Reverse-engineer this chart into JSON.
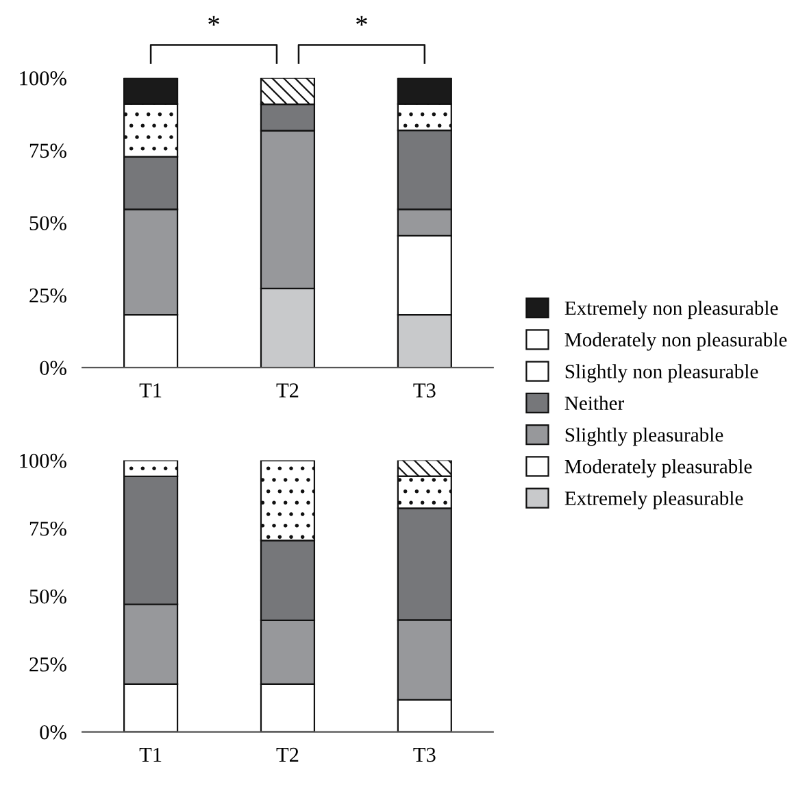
{
  "chart_data": [
    {
      "type": "bar",
      "stacked": true,
      "categories": [
        "T1",
        "T2",
        "T3"
      ],
      "legend": "right",
      "ylim": [
        0,
        100
      ],
      "yticks": [
        {
          "value": 0,
          "label": "0%"
        },
        {
          "value": 25,
          "label": "25%"
        },
        {
          "value": 50,
          "label": "50%"
        },
        {
          "value": 75,
          "label": "75%"
        },
        {
          "value": 100,
          "label": "100%"
        }
      ],
      "annotations": [
        "*",
        "*"
      ],
      "series": [
        {
          "name": "Extremely pleasurable",
          "color": "#c8c9cb",
          "values": [
            0,
            27.3,
            18.2
          ]
        },
        {
          "name": "Moderately pleasurable",
          "color": "#ffffff",
          "values": [
            18.2,
            0,
            27.3
          ]
        },
        {
          "name": "Slightly pleasurable",
          "color": "#97989b",
          "values": [
            36.4,
            54.5,
            9.1
          ]
        },
        {
          "name": "Neither",
          "color": "#76777a",
          "values": [
            18.2,
            9.1,
            27.3
          ]
        },
        {
          "name": "Slightly non pleasurable",
          "color": "#ffffff",
          "values": [
            18.2,
            0,
            9.1
          ]
        },
        {
          "name": "Moderately non pleasurable",
          "color": "#ffffff",
          "values": [
            0,
            9.1,
            0
          ]
        },
        {
          "name": "Extremely non pleasurable",
          "color": "#1a1a1a",
          "values": [
            9.1,
            0,
            9.1
          ]
        }
      ]
    },
    {
      "type": "bar",
      "stacked": true,
      "categories": [
        "T1",
        "T2",
        "T3"
      ],
      "ylim": [
        0,
        100
      ],
      "yticks": [
        {
          "value": 0,
          "label": "0%"
        },
        {
          "value": 25,
          "label": "25%"
        },
        {
          "value": 50,
          "label": "50%"
        },
        {
          "value": 75,
          "label": "75%"
        },
        {
          "value": 100,
          "label": "100%"
        }
      ],
      "series": [
        {
          "name": "Extremely pleasurable",
          "color": "#c8c9cb",
          "values": [
            0,
            0,
            0
          ]
        },
        {
          "name": "Moderately pleasurable",
          "color": "#ffffff",
          "values": [
            17.6,
            17.6,
            11.8
          ]
        },
        {
          "name": "Slightly pleasurable",
          "color": "#97989b",
          "values": [
            29.4,
            23.5,
            29.4
          ]
        },
        {
          "name": "Neither",
          "color": "#76777a",
          "values": [
            47.1,
            29.4,
            41.2
          ]
        },
        {
          "name": "Slightly non pleasurable",
          "color": "#ffffff",
          "values": [
            5.9,
            29.4,
            11.8
          ]
        },
        {
          "name": "Moderately non pleasurable",
          "color": "#ffffff",
          "values": [
            0,
            0,
            5.9
          ]
        },
        {
          "name": "Extremely non pleasurable",
          "color": "#1a1a1a",
          "values": [
            0,
            0,
            0
          ]
        }
      ]
    }
  ]
}
